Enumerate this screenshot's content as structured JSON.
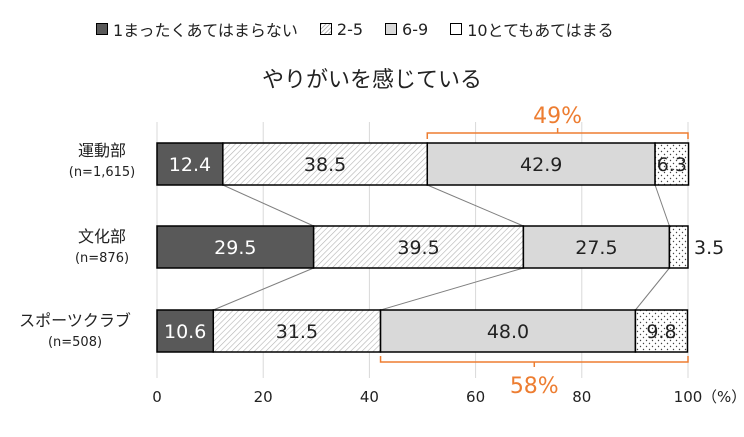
{
  "legend": [
    {
      "label": "1まったくあてはまらない",
      "color": "#595959",
      "pattern": "solid"
    },
    {
      "label": "2-5",
      "color": "#ffffff",
      "pattern": "hatch"
    },
    {
      "label": "6-9",
      "color": "#d9d9d9",
      "pattern": "solid"
    },
    {
      "label": "10とてもあてはまる",
      "color": "#ffffff",
      "pattern": "dots"
    }
  ],
  "unit_label": "（%）",
  "bracket_color": "#ed7d31",
  "chart_data": {
    "type": "bar",
    "orientation": "horizontal",
    "stacked": "percent",
    "title": "やりがいを感じている",
    "categories": [
      {
        "name": "運動部",
        "n": "(n=1,615)"
      },
      {
        "name": "文化部",
        "n": "(n=876)"
      },
      {
        "name": "スポーツクラブ",
        "n": "(n=508)"
      }
    ],
    "series": [
      {
        "name": "1まったくあてはまらない",
        "values": [
          12.4,
          29.5,
          10.6
        ]
      },
      {
        "name": "2-5",
        "values": [
          38.5,
          39.5,
          31.5
        ]
      },
      {
        "name": "6-9",
        "values": [
          42.9,
          27.5,
          48.0
        ]
      },
      {
        "name": "10とてもあてはまる",
        "values": [
          6.3,
          3.5,
          9.8
        ]
      }
    ],
    "value_labels": [
      [
        "12.4",
        "38.5",
        "42.9",
        "6.3"
      ],
      [
        "29.5",
        "39.5",
        "27.5",
        "3.5"
      ],
      [
        "10.6",
        "31.5",
        "48.0",
        "9.8"
      ]
    ],
    "xlim": [
      0,
      100
    ],
    "xticks": [
      "0",
      "20",
      "40",
      "60",
      "80",
      "100"
    ],
    "grid": true,
    "legend_position": "top",
    "annotations": [
      {
        "text": "49%",
        "category_index": 0,
        "from": 50.9,
        "to": 100,
        "side": "above"
      },
      {
        "text": "58%",
        "category_index": 2,
        "from": 42.1,
        "to": 100,
        "side": "below"
      }
    ]
  }
}
